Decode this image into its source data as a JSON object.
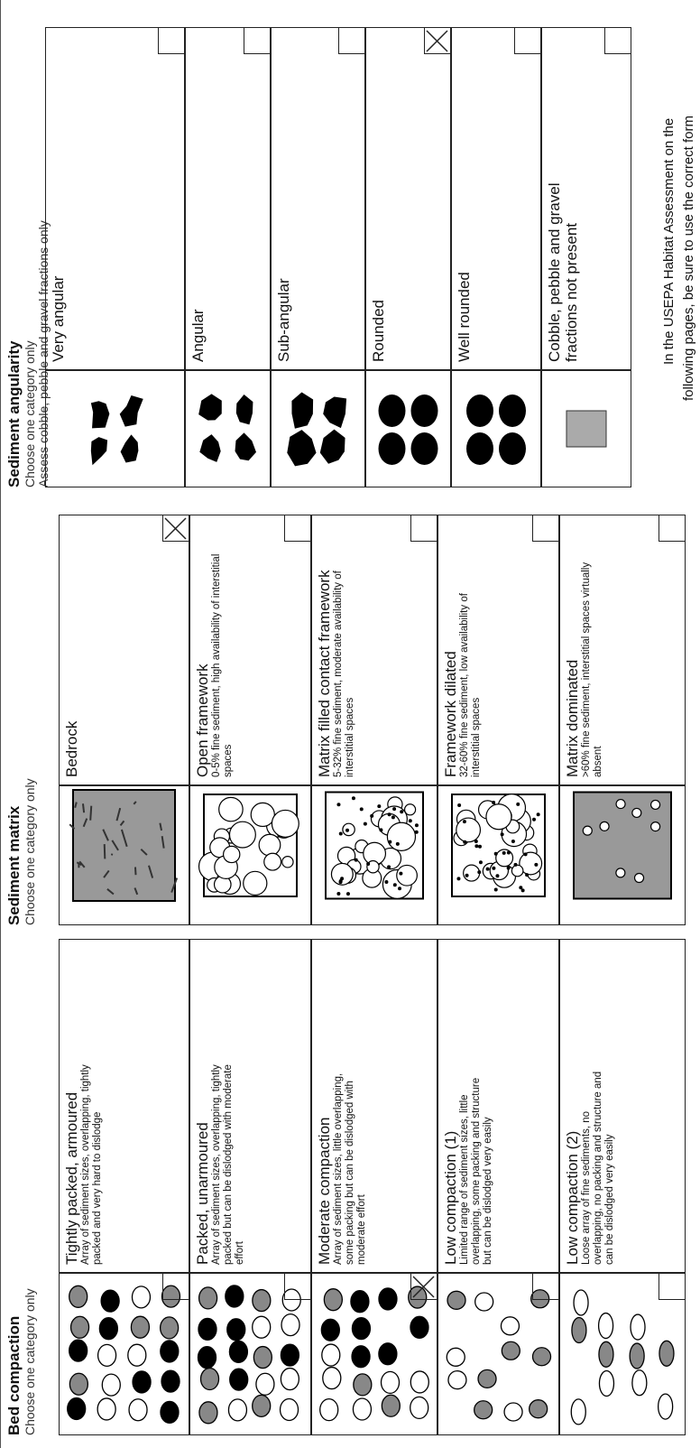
{
  "sections": [
    {
      "title": "Bed compaction",
      "subtitle": [
        "Choose one category only"
      ],
      "rows": [
        {
          "label": "Tightly packed, armoured",
          "description": "Array of sediment sizes, overlapping, tightly packed and very hard to dislodge",
          "checked": false
        },
        {
          "label": "Packed, unarmoured",
          "description": "Array of sediment sizes, overlapping, tightly packed but can be dislodged with moderate effort",
          "checked": false
        },
        {
          "label": "Moderate compaction",
          "description": "Array of sediment sizes, little overlapping, some packing but can be dislodged with moderate effort",
          "checked": true
        },
        {
          "label": "Low compaction (1)",
          "description": "Limited range of sediment sizes, little overlapping, some packing and structure but can be dislodged very easily",
          "checked": false
        },
        {
          "label": "Low compaction (2)",
          "description": "Loose array of fine sediments, no overlapping, no packing and structure and can be dislodged very easily",
          "checked": false
        }
      ]
    },
    {
      "title": "Sediment matrix",
      "subtitle": [
        "Choose one category only"
      ],
      "rows": [
        {
          "label": "Bedrock",
          "description": "",
          "checked": true
        },
        {
          "label": "Open framework",
          "description": "0-5% fine sediment, high availability of interstitial spaces",
          "checked": false
        },
        {
          "label": "Matrix filled contact framework",
          "description": "5-32% fine sediment, moderate availability of interstitial spaces",
          "checked": false
        },
        {
          "label": "Framework dilated",
          "description": "32-60% fine sediment, low availability of interstitial spaces",
          "checked": false
        },
        {
          "label": "Matrix dominated",
          "description": ">60% fine sediment, interstitial spaces virtually absent",
          "checked": false
        }
      ]
    },
    {
      "title": "Sediment angularity",
      "subtitle": [
        "Choose one category only",
        "Assess cobble, pebble and gravel fractions only"
      ],
      "rows": [
        {
          "label": "Very angular",
          "description": "",
          "checked": false
        },
        {
          "label": "Angular",
          "description": "",
          "checked": false
        },
        {
          "label": "Sub-angular",
          "description": "",
          "checked": false
        },
        {
          "label": "Rounded",
          "description": "",
          "checked": true
        },
        {
          "label": "Well rounded",
          "description": "",
          "checked": false
        },
        {
          "label": "Cobble, pebble and gravel fractions not present",
          "description": "",
          "checked": false
        }
      ]
    }
  ],
  "footer": [
    "In the USEPA Habitat Assessment on the",
    "following pages, be sure to use the correct form"
  ]
}
